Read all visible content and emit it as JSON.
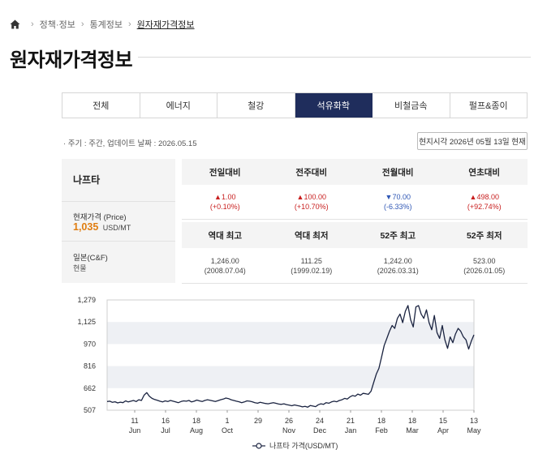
{
  "breadcrumb": {
    "items": [
      "정책·정보",
      "통계정보",
      "원자재가격정보"
    ]
  },
  "page_title": "원자재가격정보",
  "tabs": [
    {
      "label": "전체",
      "active": false
    },
    {
      "label": "에너지",
      "active": false
    },
    {
      "label": "철강",
      "active": false
    },
    {
      "label": "석유화학",
      "active": true
    },
    {
      "label": "비철금속",
      "active": false
    },
    {
      "label": "펄프&종이",
      "active": false
    }
  ],
  "meta": "· 주기 : 주간, 업데이트 날짜 : 2026.05.15",
  "local_time": "현지시각 2026년 05월 13일 현재",
  "product": {
    "name": "나프타",
    "price_label": "현재가격 (Price)",
    "price_value": "1,035",
    "price_unit": "USD/MT",
    "region": "일본(C&F)",
    "delivery": "현물"
  },
  "changes": {
    "headers": [
      "전일대비",
      "전주대비",
      "전월대비",
      "연초대비"
    ],
    "values": [
      {
        "amount": "▲1.00",
        "pct": "(+0.10%)",
        "dir": "up"
      },
      {
        "amount": "▲100.00",
        "pct": "(+10.70%)",
        "dir": "up"
      },
      {
        "amount": "▼70.00",
        "pct": "(-6.33%)",
        "dir": "down"
      },
      {
        "amount": "▲498.00",
        "pct": "(+92.74%)",
        "dir": "up"
      }
    ]
  },
  "records": {
    "headers": [
      "역대 최고",
      "역대 최저",
      "52주 최고",
      "52주 최저"
    ],
    "values": [
      {
        "value": "1,246.00",
        "date": "(2008.07.04)"
      },
      {
        "value": "111.25",
        "date": "(1999.02.19)"
      },
      {
        "value": "1,242.00",
        "date": "(2026.03.31)"
      },
      {
        "value": "523.00",
        "date": "(2026.01.05)"
      }
    ]
  },
  "chart_data": {
    "type": "line",
    "y_ticks": [
      "1,279",
      "1,125",
      "970",
      "816",
      "662",
      "507"
    ],
    "ylim": [
      507,
      1279
    ],
    "x_ticks": [
      {
        "day": "11",
        "month": "Jun"
      },
      {
        "day": "16",
        "month": "Jul"
      },
      {
        "day": "18",
        "month": "Aug"
      },
      {
        "day": "1",
        "month": "Oct"
      },
      {
        "day": "29",
        "month": ""
      },
      {
        "day": "26",
        "month": "Nov"
      },
      {
        "day": "24",
        "month": "Dec"
      },
      {
        "day": "21",
        "month": "Jan"
      },
      {
        "day": "18",
        "month": "Feb"
      },
      {
        "day": "18",
        "month": "Mar"
      },
      {
        "day": "15",
        "month": "Apr"
      },
      {
        "day": "13",
        "month": "May"
      }
    ],
    "series": [
      {
        "name": "나프타 가격(USD/MT)",
        "color": "#1a2340",
        "values": [
          568,
          570,
          562,
          566,
          558,
          563,
          560,
          572,
          565,
          570,
          575,
          568,
          580,
          575,
          612,
          630,
          605,
          590,
          582,
          576,
          570,
          565,
          572,
          568,
          575,
          570,
          565,
          560,
          568,
          572,
          570,
          575,
          565,
          570,
          578,
          572,
          568,
          575,
          580,
          576,
          572,
          568,
          574,
          580,
          585,
          592,
          588,
          580,
          575,
          570,
          566,
          560,
          565,
          572,
          570,
          566,
          560,
          556,
          562,
          558,
          554,
          552,
          556,
          560,
          555,
          550,
          548,
          552,
          546,
          542,
          538,
          544,
          540,
          536,
          530,
          534,
          528,
          540,
          536,
          532,
          545,
          552,
          548,
          560,
          556,
          565,
          570,
          566,
          575,
          580,
          590,
          585,
          600,
          610,
          605,
          620,
          612,
          625,
          622,
          618,
          640,
          700,
          760,
          800,
          880,
          960,
          1010,
          1060,
          1100,
          1080,
          1150,
          1180,
          1120,
          1200,
          1240,
          1140,
          1090,
          1230,
          1240,
          1180,
          1150,
          1210,
          1120,
          1070,
          1170,
          1050,
          1010,
          1100,
          1000,
          940,
          1020,
          980,
          1040,
          1080,
          1060,
          1020,
          1000,
          935,
          990,
          1035
        ]
      }
    ]
  }
}
